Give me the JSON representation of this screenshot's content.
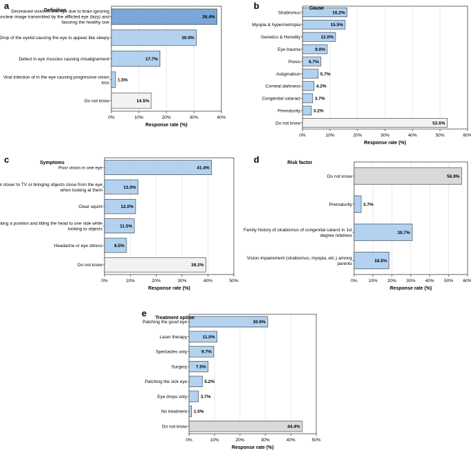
{
  "chart_data": [
    {
      "letter": "a",
      "type": "bar",
      "orientation": "horizontal",
      "title": "Definition",
      "xlabel": "Response rate (%)",
      "xlim": [
        0,
        40
      ],
      "xticks": [
        0,
        10,
        20,
        30,
        40
      ],
      "tick_labels": [
        "0%",
        "10%",
        "20%",
        "30%",
        "40%"
      ],
      "grid": true,
      "categories": [
        [
          "Decreased vision in one eye due to brain ignoring",
          "unclear image transmitted by the afflicted eye (lazy) and",
          "favoring the healthy one"
        ],
        [
          "Drop of the eyelid causing the eye to appear like sleepy"
        ],
        [
          "Defect in eye muscles causing misalignement"
        ],
        [
          "Viral infection of in the eye causing progressive vision",
          "loss"
        ],
        [
          "Do not know"
        ]
      ],
      "values": [
        38.4,
        30.9,
        17.7,
        1.5,
        14.5
      ],
      "labels": [
        "38.4%",
        "30.9%",
        "17.7%",
        "1.5%",
        "14.5%"
      ],
      "colors": [
        "#7BA7D8",
        "#B2D2F0",
        "#B2D2F0",
        "#B2D2F0",
        "#F2F2F2"
      ]
    },
    {
      "letter": "b",
      "type": "bar",
      "orientation": "horizontal",
      "title": "Cause",
      "xlabel": "Response rate (%)",
      "xlim": [
        0,
        60
      ],
      "xticks": [
        0,
        10,
        20,
        30,
        40,
        50,
        60
      ],
      "tick_labels": [
        "0%",
        "10%",
        "20%",
        "30%",
        "40%",
        "50%",
        "60%"
      ],
      "grid": true,
      "categories": [
        [
          "Strabismus"
        ],
        [
          "Myopia & hypermetropia"
        ],
        [
          "Genetics & Heredity"
        ],
        [
          "Eye trauma"
        ],
        [
          "Ptosis"
        ],
        [
          "Astigmatism"
        ],
        [
          "Corneal darkness"
        ],
        [
          "Congenital cataract"
        ],
        [
          "Prematurity"
        ],
        [
          "Do not know"
        ]
      ],
      "values": [
        16.2,
        15.5,
        12.0,
        9.0,
        6.7,
        5.7,
        4.2,
        3.7,
        3.2,
        52.6
      ],
      "labels": [
        "16.2%",
        "15.5%",
        "12.0%",
        "9.0%",
        "6.7%",
        "5.7%",
        "4.2%",
        "3.7%",
        "3.2%",
        "52.6%"
      ],
      "colors": [
        "#B2D2F0",
        "#B2D2F0",
        "#B2D2F0",
        "#B2D2F0",
        "#B2D2F0",
        "#B2D2F0",
        "#B2D2F0",
        "#B2D2F0",
        "#B2D2F0",
        "#F2F2F2"
      ]
    },
    {
      "letter": "c",
      "type": "bar",
      "orientation": "horizontal",
      "title": "Symptoms",
      "xlabel": "Response rate (%)",
      "xlim": [
        0,
        50
      ],
      "xticks": [
        0,
        10,
        20,
        30,
        40,
        50
      ],
      "tick_labels": [
        "0%",
        "10%",
        "20%",
        "30%",
        "40%",
        "50%"
      ],
      "grid": true,
      "categories": [
        [
          "Poor vision in one eye"
        ],
        [
          "Get closer to TV or bringing objects close from the eye",
          "when looking at them"
        ],
        [
          "Clear squint"
        ],
        [
          "Taking a position and titling the head to one side while",
          "looking to objects"
        ],
        [
          "Headache or eye sttress"
        ],
        [
          "Do not know"
        ]
      ],
      "values": [
        41.4,
        13.0,
        12.0,
        11.5,
        8.5,
        39.2
      ],
      "labels": [
        "41.4%",
        "13.0%",
        "12.0%",
        "11.5%",
        "8.5%",
        "39.2%"
      ],
      "colors": [
        "#B2D2F0",
        "#B2D2F0",
        "#B2D2F0",
        "#B2D2F0",
        "#B2D2F0",
        "#F2F2F2"
      ]
    },
    {
      "letter": "d",
      "type": "bar",
      "orientation": "horizontal",
      "title": "Risk factor",
      "xlabel": "Response rate (%)",
      "xlim": [
        0,
        60
      ],
      "xticks": [
        0,
        10,
        20,
        30,
        40,
        50,
        60
      ],
      "tick_labels": [
        "0%",
        "10%",
        "20%",
        "30%",
        "40%",
        "50%",
        "60%"
      ],
      "grid": true,
      "categories": [
        [
          "Do not know"
        ],
        [
          "Prematurity"
        ],
        [
          "Family history of strabismus of congenital catarct in 1st",
          "degree relatives"
        ],
        [
          "Vision impairement (strabismus, myopia, etc.) among",
          "parents"
        ]
      ],
      "values": [
        56.9,
        3.7,
        30.7,
        18.5
      ],
      "labels": [
        "56.9%",
        "3.7%",
        "30.7%",
        "18.5%"
      ],
      "colors": [
        "#D9D9D9",
        "#B2D2F0",
        "#B2D2F0",
        "#B2D2F0"
      ]
    },
    {
      "letter": "e",
      "type": "bar",
      "orientation": "horizontal",
      "title": "Treatment option",
      "xlabel": "Response rate (%)",
      "xlim": [
        0,
        50
      ],
      "xticks": [
        0,
        10,
        20,
        30,
        40,
        50
      ],
      "tick_labels": [
        "0%",
        "10%",
        "20%",
        "30%",
        "40%",
        "50%"
      ],
      "grid": true,
      "categories": [
        [
          "Patching the good eye"
        ],
        [
          "Laser therapy"
        ],
        [
          "Spectacles only"
        ],
        [
          "Surgery"
        ],
        [
          "Patching the sick eye"
        ],
        [
          "Eye drops only"
        ],
        [
          "No treatment"
        ],
        [
          "Do not know"
        ]
      ],
      "values": [
        30.9,
        11.0,
        9.7,
        7.5,
        5.2,
        3.7,
        1.0,
        44.4
      ],
      "labels": [
        "30.9%",
        "11.0%",
        "9.7%",
        "7.5%",
        "5.2%",
        "3.7%",
        "1.0%",
        "44.4%"
      ],
      "colors": [
        "#B2D2F0",
        "#B2D2F0",
        "#B2D2F0",
        "#B2D2F0",
        "#B2D2F0",
        "#B2D2F0",
        "#B2D2F0",
        "#D9D9D9"
      ]
    }
  ]
}
